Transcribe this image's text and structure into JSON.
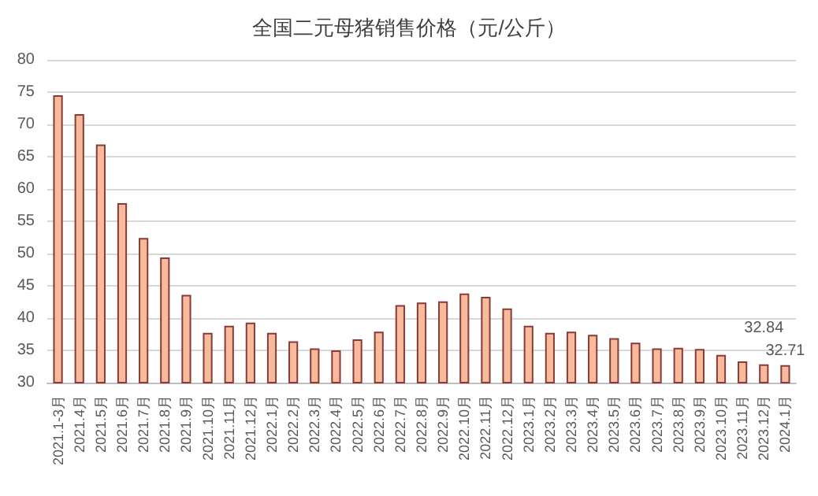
{
  "chart_data": {
    "type": "bar",
    "title": "全国二元母猪销售价格（元/公斤）",
    "categories": [
      "2021.1-3月",
      "2021.4月",
      "2021.5月",
      "2021.6月",
      "2021.7月",
      "2021.8月",
      "2021.9月",
      "2021.10月",
      "2021.11月",
      "2021.12月",
      "2022.1月",
      "2022.2月",
      "2022.3月",
      "2022.4月",
      "2022.5月",
      "2022.6月",
      "2022.7月",
      "2022.8月",
      "2022.9月",
      "2022.10月",
      "2022.11月",
      "2022.12月",
      "2023.1月",
      "2023.2月",
      "2023.3月",
      "2023.4月",
      "2023.5月",
      "2023.6月",
      "2023.7月",
      "2023.8月",
      "2023.9月",
      "2023.10月",
      "2023.11月",
      "2023.12月",
      "2024.1月"
    ],
    "values": [
      74.5,
      71.6,
      66.9,
      57.8,
      52.4,
      49.4,
      43.6,
      37.7,
      38.8,
      39.3,
      37.7,
      36.4,
      35.3,
      35.0,
      36.7,
      37.9,
      42.0,
      42.4,
      42.6,
      43.8,
      43.3,
      41.5,
      38.8,
      37.7,
      37.9,
      37.4,
      36.9,
      36.2,
      35.3,
      35.4,
      35.2,
      34.3,
      33.3,
      32.84,
      32.71
    ],
    "value_labels": [
      null,
      null,
      null,
      null,
      null,
      null,
      null,
      null,
      null,
      null,
      null,
      null,
      null,
      null,
      null,
      null,
      null,
      null,
      null,
      null,
      null,
      null,
      null,
      null,
      null,
      null,
      null,
      null,
      null,
      null,
      null,
      null,
      null,
      "32.84",
      "32.71"
    ],
    "color": "#f7bb9b",
    "ylim": [
      30,
      80
    ],
    "yticks": [
      30,
      35,
      40,
      45,
      50,
      55,
      60,
      65,
      70,
      75,
      80
    ],
    "grid": "y"
  }
}
